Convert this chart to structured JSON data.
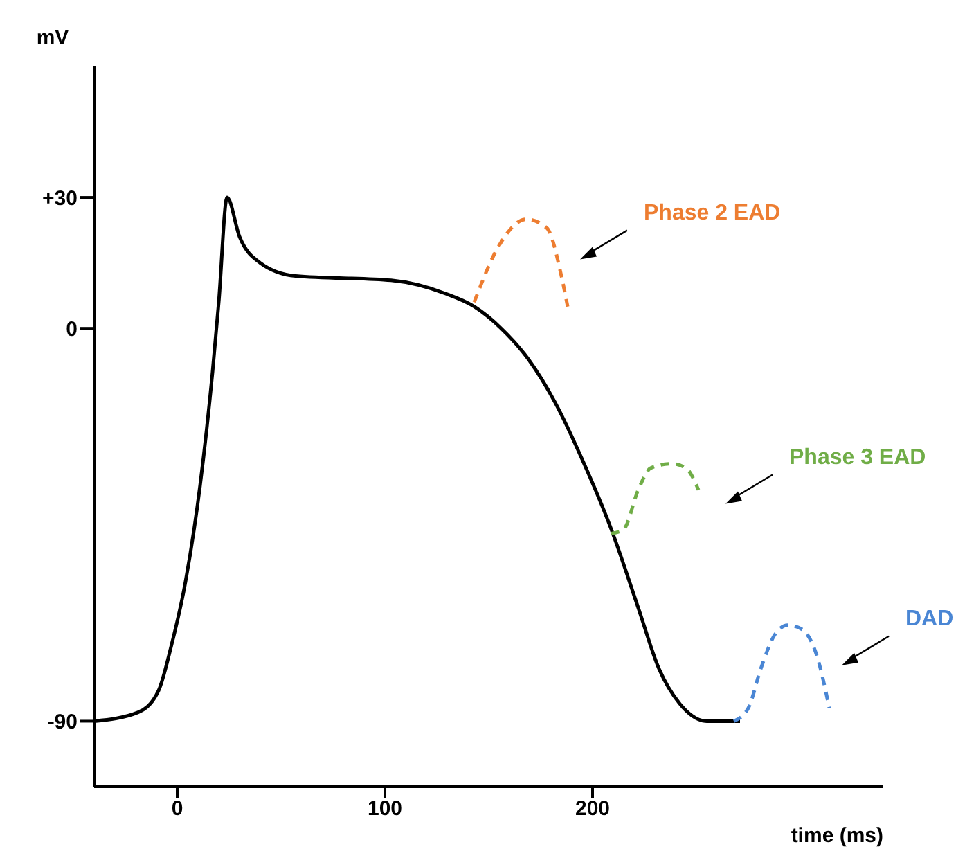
{
  "chart_data": {
    "type": "line",
    "xlabel": "time (ms)",
    "ylabel": "mV",
    "xlim": [
      -40,
      340
    ],
    "ylim": [
      -105,
      60
    ],
    "xticks": [
      0,
      100,
      200
    ],
    "yticks": [
      {
        "value": 30,
        "label": "+30"
      },
      0,
      -90
    ],
    "grid": false,
    "legend": false,
    "marker": "none",
    "series": [
      {
        "color": "#000000",
        "line_style": "solid",
        "x": [
          -40,
          -19,
          -9,
          -3,
          4,
          11,
          17,
          20,
          24,
          30,
          40,
          57,
          103,
          129,
          143,
          156,
          169,
          182,
          195,
          209,
          222,
          232,
          242,
          255,
          271
        ],
        "values": [
          -90,
          -88,
          -83,
          -73,
          -58,
          -36,
          -10,
          6,
          30,
          21,
          15,
          12,
          11,
          8,
          5,
          0,
          -7,
          -17,
          -30,
          -46,
          -64,
          -78,
          -86,
          -90,
          -90
        ]
      },
      {
        "name": "Phase 2 EAD",
        "color": "#ed7d31",
        "line_style": "dashed",
        "x": [
          143,
          155,
          168,
          178,
          185,
          188
        ],
        "values": [
          6,
          19,
          25,
          23,
          12,
          5
        ]
      },
      {
        "name": "Phase 3 EAD",
        "color": "#70ad47",
        "line_style": "dashed",
        "x": [
          209,
          215,
          222,
          228,
          238,
          245,
          251
        ],
        "values": [
          -47,
          -46,
          -37,
          -32,
          -31,
          -32,
          -37
        ]
      },
      {
        "name": "DAD",
        "color": "#4a86d4",
        "line_style": "dashed",
        "x": [
          268,
          275,
          281,
          288,
          294,
          301,
          308,
          314
        ],
        "values": [
          -90,
          -87,
          -78,
          -70,
          -68,
          -69,
          -75,
          -87
        ]
      }
    ]
  }
}
